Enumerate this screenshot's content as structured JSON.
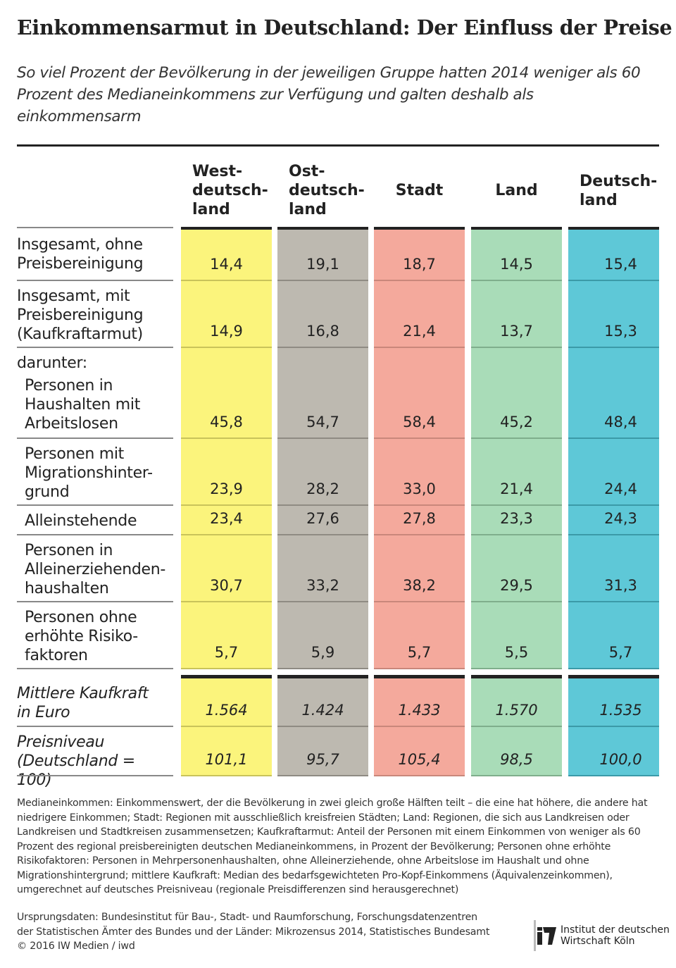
{
  "title": "Einkommensarmut in Deutschland: Der Einfluss der Preise",
  "subtitle": "So viel Prozent der Bevölkerung in der jeweiligen Gruppe hatten 2014 weniger als 60 Prozent des Medianeinkommens zur Verfügung und galten deshalb als einkommensarm",
  "chart_data": {
    "type": "table",
    "columns": [
      {
        "label": "West-\ndeutsch-\nland",
        "color": "#fbf47c"
      },
      {
        "label": "Ost-\ndeutsch-\nland",
        "color": "#bdb9b0"
      },
      {
        "label": "Stadt",
        "color": "#f4a99c"
      },
      {
        "label": "Land",
        "color": "#a9dcb8"
      },
      {
        "label": "Deutsch-\nland",
        "color": "#5ec8d7"
      }
    ],
    "rows": [
      {
        "label": "Insgesamt, ohne\nPreisbereinigung",
        "values": [
          "14,4",
          "19,1",
          "18,7",
          "14,5",
          "15,4"
        ]
      },
      {
        "label": "Insgesamt, mit\nPreisbereinigung\n(Kaufkraftarmut)",
        "values": [
          "14,9",
          "16,8",
          "21,4",
          "13,7",
          "15,3"
        ]
      },
      {
        "prefix": "darunter:",
        "label": "Personen in\nHaushalten mit\nArbeitslosen",
        "values": [
          "45,8",
          "54,7",
          "58,4",
          "45,2",
          "48,4"
        ]
      },
      {
        "label": "Personen mit\nMigrationshinter-\ngrund",
        "values": [
          "23,9",
          "28,2",
          "33,0",
          "21,4",
          "24,4"
        ]
      },
      {
        "label": "Alleinstehende",
        "values": [
          "23,4",
          "27,6",
          "27,8",
          "23,3",
          "24,3"
        ]
      },
      {
        "label": "Personen in\nAlleinerziehenden-\nhaushalten",
        "values": [
          "30,7",
          "33,2",
          "38,2",
          "29,5",
          "31,3"
        ]
      },
      {
        "label": "Personen ohne\nerhöhte Risiko-\nfaktoren",
        "values": [
          "5,7",
          "5,9",
          "5,7",
          "5,5",
          "5,7"
        ]
      },
      {
        "label": "Mittlere Kaufkraft\nin Euro",
        "italic": true,
        "values": [
          "1.564",
          "1.424",
          "1.433",
          "1.570",
          "1.535"
        ]
      },
      {
        "label": "Preisniveau\n(Deutschland = 100)",
        "italic": true,
        "values": [
          "101,1",
          "95,7",
          "105,4",
          "98,5",
          "100,0"
        ]
      }
    ]
  },
  "footnote": "Medianeinkommen: Einkommenswert, der die Bevölkerung in zwei gleich große Hälften teilt – die eine hat höhere, die andere hat niedrigere Einkommen; Stadt: Regionen mit ausschließlich kreisfreien Städten; Land: Regionen, die sich aus Landkreisen oder Landkreisen und Stadtkreisen zusammensetzen; Kaufkraftarmut: Anteil der Personen mit einem Einkommen von weniger als 60 Prozent des regional preisbereinigten deutschen Medianeinkommens, in Prozent der Bevölkerung; Personen ohne erhöhte Risikofaktoren: Personen in Mehrpersonenhaushalten, ohne Alleinerziehende, ohne Arbeitslose im Haushalt und ohne Migrationshintergrund; mittlere Kaufkraft: Median des bedarfsgewichteten Pro-Kopf-Einkommens (Äquivalenzeinkommen), umgerechnet auf deutsches Preisniveau (regionale Preisdifferenzen sind herausgerechnet)",
  "source": "Ursprungsdaten: Bundesinstitut für Bau-, Stadt- und Raumforschung, Forschungsdatenzentren\nder Statistischen Ämter des Bundes und der Länder: Mikrozensus 2014, Statistisches Bundesamt\n© 2016 IW Medien / iwd",
  "logo": {
    "mark": "IW",
    "text": "Institut der deutschen\nWirtschaft Köln"
  }
}
